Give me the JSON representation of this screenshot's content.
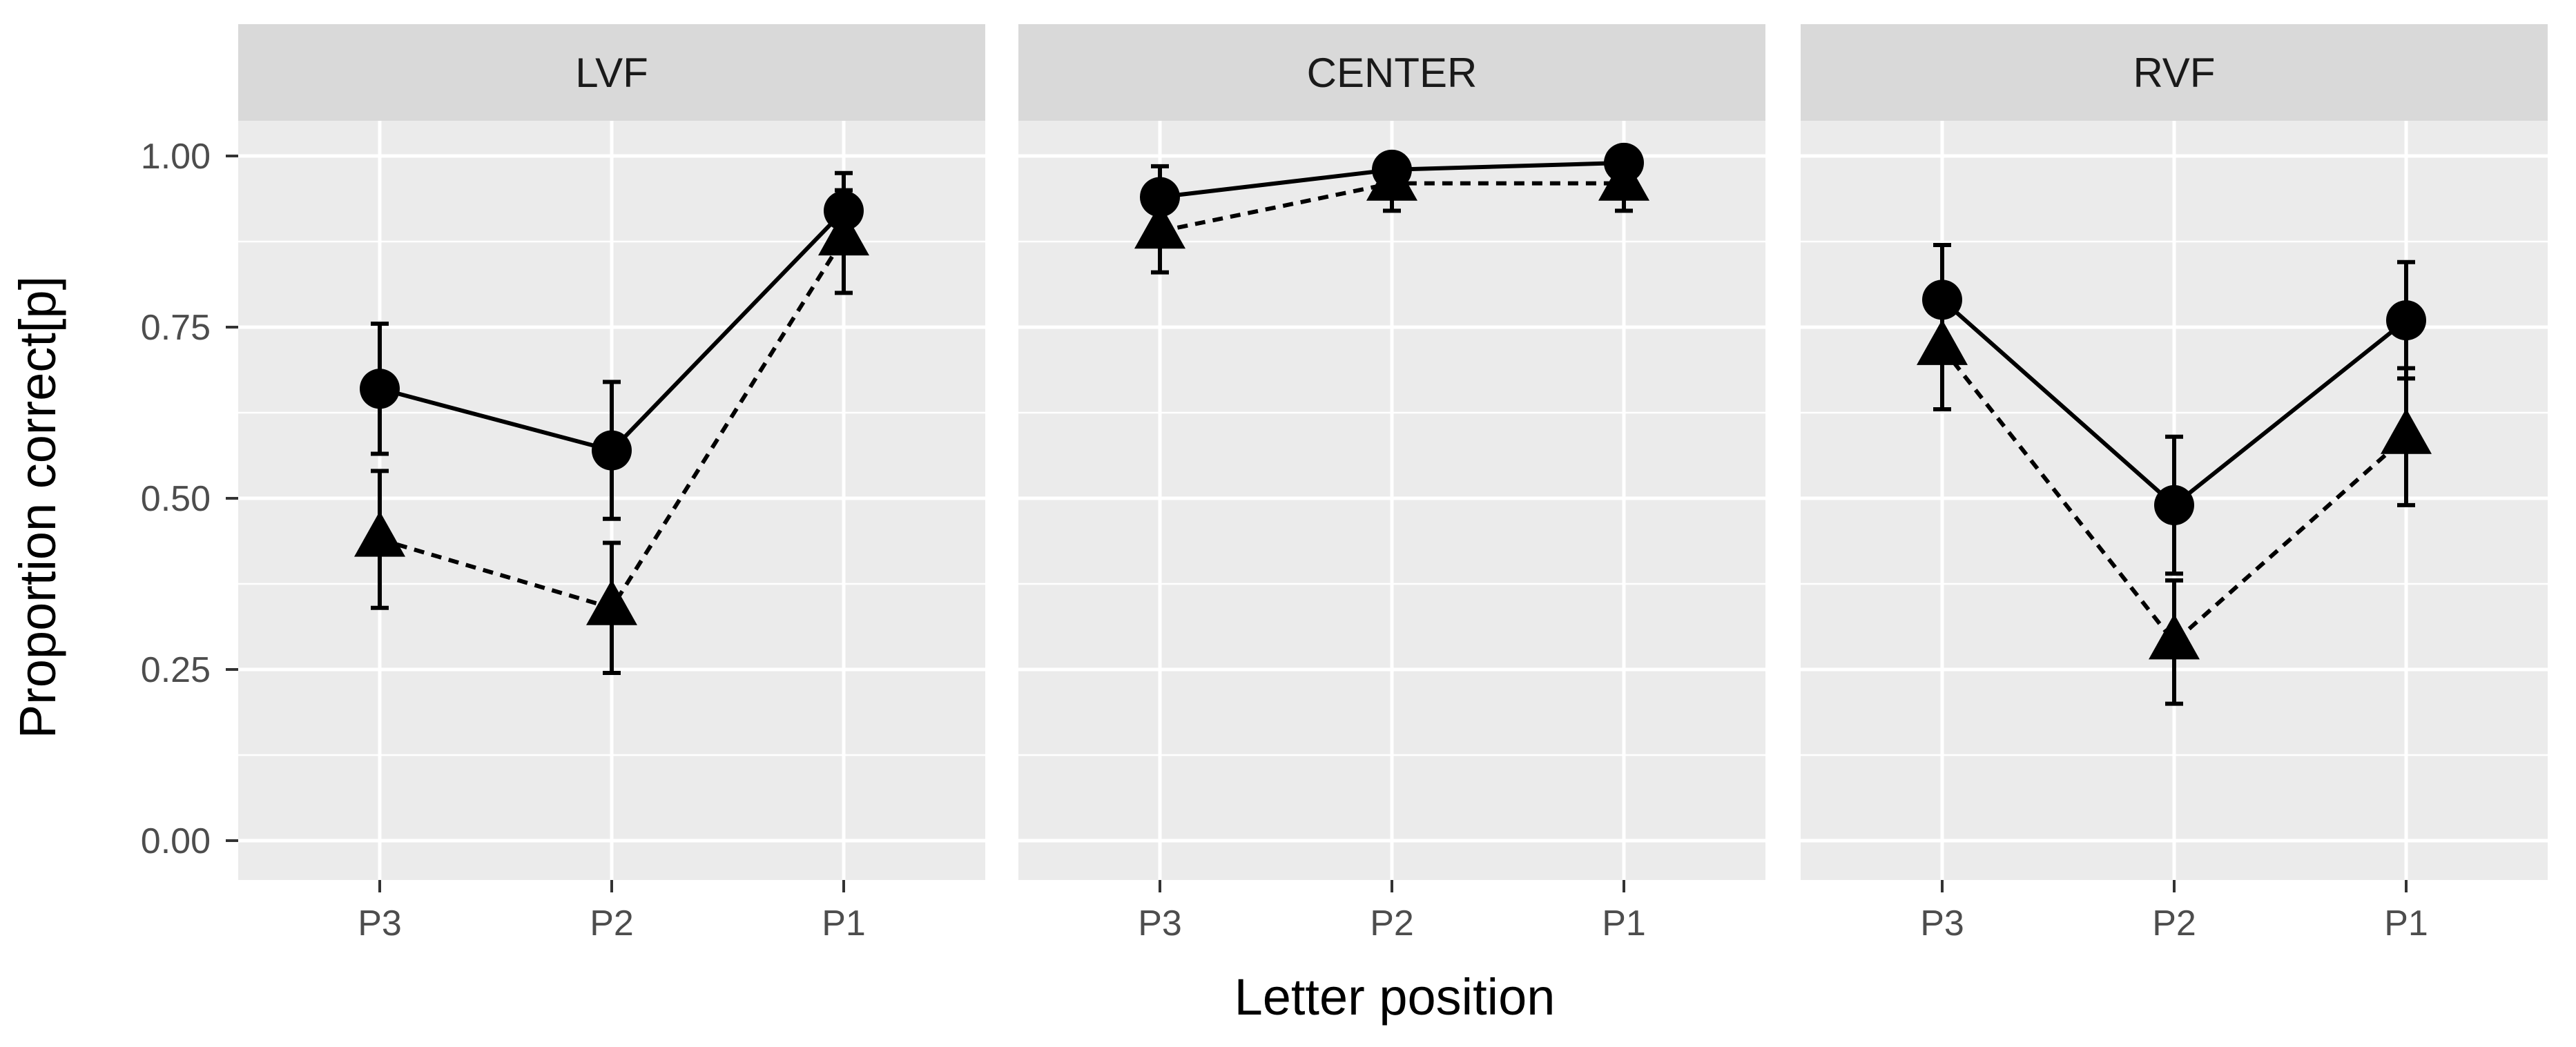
{
  "chart_data": {
    "type": "line",
    "xlabel": "Letter position",
    "ylabel": "Proportion correct[p]",
    "ylim": [
      0,
      1
    ],
    "y_ticks": [
      "0.00",
      "0.25",
      "0.50",
      "0.75",
      "1.00"
    ],
    "categories": [
      "P3",
      "P2",
      "P1"
    ],
    "grid": true,
    "legend": "none",
    "panels": [
      {
        "label": "LVF",
        "series": [
          {
            "marker": "circle",
            "line": "solid",
            "values": [
              0.66,
              0.57,
              0.92
            ],
            "lower": [
              0.565,
              0.47,
              0.87
            ],
            "upper": [
              0.755,
              0.67,
              0.975
            ]
          },
          {
            "marker": "triangle",
            "line": "dashed",
            "values": [
              0.44,
              0.34,
              0.88
            ],
            "lower": [
              0.34,
              0.245,
              0.8
            ],
            "upper": [
              0.54,
              0.435,
              0.95
            ]
          }
        ]
      },
      {
        "label": "CENTER",
        "series": [
          {
            "marker": "circle",
            "line": "solid",
            "values": [
              0.94,
              0.98,
              0.99
            ],
            "lower": [
              0.895,
              0.95,
              0.97
            ],
            "upper": [
              0.985,
              1.0,
              1.0
            ]
          },
          {
            "marker": "triangle",
            "line": "dashed",
            "values": [
              0.89,
              0.96,
              0.96
            ],
            "lower": [
              0.83,
              0.92,
              0.92
            ],
            "upper": [
              0.95,
              1.0,
              1.0
            ]
          }
        ]
      },
      {
        "label": "RVF",
        "series": [
          {
            "marker": "circle",
            "line": "solid",
            "values": [
              0.79,
              0.49,
              0.76
            ],
            "lower": [
              0.71,
              0.39,
              0.675
            ],
            "upper": [
              0.87,
              0.59,
              0.845
            ]
          },
          {
            "marker": "triangle",
            "line": "dashed",
            "values": [
              0.72,
              0.29,
              0.59
            ],
            "lower": [
              0.63,
              0.2,
              0.49
            ],
            "upper": [
              0.81,
              0.38,
              0.69
            ]
          }
        ]
      }
    ]
  }
}
